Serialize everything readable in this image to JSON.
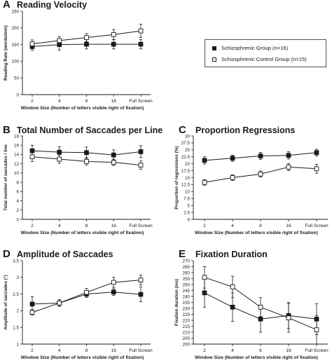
{
  "colors": {
    "series_filled": "#1a1a1a",
    "series_open": "#ffffff",
    "axis": "#1a1a1a",
    "errorbar": "#1a1a1a"
  },
  "legend": {
    "entries": [
      {
        "symbol": "filled-square",
        "label": "Schizophrenic Group (n=16)"
      },
      {
        "symbol": "open-square",
        "label": "Schizophrenic Control Group (n=15)"
      }
    ]
  },
  "chart_data": [
    {
      "panel": "A",
      "type": "line",
      "title": "Reading Velocity",
      "xlabel": "Window Size (Number of letters visible right of fixation)",
      "ylabel": "Reading Rate (words/min)",
      "categories": [
        "2",
        "4",
        "8",
        "16",
        "Full Screen"
      ],
      "ylim": [
        0,
        250
      ],
      "yticks": [
        0,
        50,
        100,
        150,
        200,
        250
      ],
      "series": [
        {
          "name": "Schizophrenic Group (n=16)",
          "marker": "filled",
          "values": [
            144,
            150,
            151,
            151,
            151
          ],
          "err": [
            11,
            17,
            14,
            14,
            14
          ]
        },
        {
          "name": "Schizophrenic Control Group (n=15)",
          "marker": "open",
          "values": [
            152,
            162,
            171,
            180,
            191
          ],
          "err": [
            12,
            12,
            12,
            15,
            20
          ]
        }
      ]
    },
    {
      "panel": "B",
      "type": "line",
      "title": "Total Number of Saccades per Line",
      "xlabel": "Window Size (Number of letters visible right of fixation)",
      "ylabel": "Total number of saccades / line",
      "categories": [
        "2",
        "4",
        "8",
        "16",
        "Full Screen"
      ],
      "ylim": [
        0,
        18
      ],
      "yticks": [
        0,
        2,
        4,
        6,
        8,
        10,
        12,
        14,
        16,
        18
      ],
      "series": [
        {
          "name": "Schizophrenic Group (n=16)",
          "marker": "filled",
          "values": [
            14.8,
            14.5,
            14.4,
            13.9,
            14.6
          ],
          "err": [
            1.2,
            1.2,
            1.2,
            1.1,
            1.3
          ]
        },
        {
          "name": "Schizophrenic Control Group (n=15)",
          "marker": "open",
          "values": [
            13.5,
            13.0,
            12.5,
            12.3,
            11.7
          ],
          "err": [
            1.0,
            0.9,
            0.8,
            0.7,
            0.9
          ]
        }
      ]
    },
    {
      "panel": "C",
      "type": "line",
      "title": "Proportion Regressions",
      "xlabel": "Window Size (Number of letters visible right of fixation)",
      "ylabel": "Proportion of regressions (%)",
      "categories": [
        "2",
        "4",
        "8",
        "16",
        "Full Screen"
      ],
      "ylim": [
        0,
        30
      ],
      "yticks": [
        0,
        2.5,
        5,
        7.5,
        10,
        12.5,
        15,
        17.5,
        20,
        22.5,
        25,
        27.5,
        30
      ],
      "series": [
        {
          "name": "Schizophrenic Group (n=16)",
          "marker": "filled",
          "values": [
            21.2,
            22.0,
            22.8,
            23.0,
            24.0
          ],
          "err": [
            1.3,
            1.1,
            1.3,
            1.3,
            1.2
          ]
        },
        {
          "name": "Schizophrenic Control Group (n=15)",
          "marker": "open",
          "values": [
            13.3,
            15.0,
            16.3,
            18.8,
            18.2
          ],
          "err": [
            1.0,
            1.0,
            1.1,
            1.3,
            1.6
          ]
        }
      ]
    },
    {
      "panel": "D",
      "type": "line",
      "title": "Amplitude of Saccades",
      "xlabel": "Window Size (Number of letters visible right of fixation)",
      "ylabel": "Amplitude of saccades (°)",
      "categories": [
        "2",
        "4",
        "8",
        "16",
        "Full Screen"
      ],
      "ylim": [
        1,
        3.5
      ],
      "yticks": [
        1,
        1.5,
        2,
        2.5,
        3,
        3.5
      ],
      "series": [
        {
          "name": "Schizophrenic Group (n=16)",
          "marker": "filled",
          "values": [
            2.2,
            2.23,
            2.5,
            2.56,
            2.49
          ],
          "err": [
            0.22,
            0.1,
            0.1,
            0.1,
            0.22
          ]
        },
        {
          "name": "Schizophrenic Control Group (n=15)",
          "marker": "open",
          "values": [
            1.95,
            2.23,
            2.55,
            2.85,
            2.92
          ],
          "err": [
            0.08,
            0.1,
            0.12,
            0.15,
            0.15
          ]
        }
      ]
    },
    {
      "panel": "E",
      "type": "line",
      "title": "Fixation Duration",
      "xlabel": "Window Size (Number of letters visible right of fixation)",
      "ylabel": "Fixation duration (ms)",
      "categories": [
        "2",
        "4",
        "8",
        "16",
        "Full Screen"
      ],
      "ylim": [
        200,
        270
      ],
      "yticks": [
        200,
        205,
        210,
        215,
        220,
        225,
        230,
        235,
        240,
        245,
        250,
        255,
        260,
        265,
        270
      ],
      "series": [
        {
          "name": "Schizophrenic Group (n=16)",
          "marker": "filled",
          "values": [
            243,
            231,
            221,
            224,
            221
          ],
          "err": [
            12,
            12,
            11,
            11,
            13
          ]
        },
        {
          "name": "Schizophrenic Control Group (n=15)",
          "marker": "open",
          "values": [
            256,
            248,
            231,
            222,
            212
          ],
          "err": [
            9,
            9,
            8,
            12,
            12
          ]
        }
      ]
    }
  ]
}
